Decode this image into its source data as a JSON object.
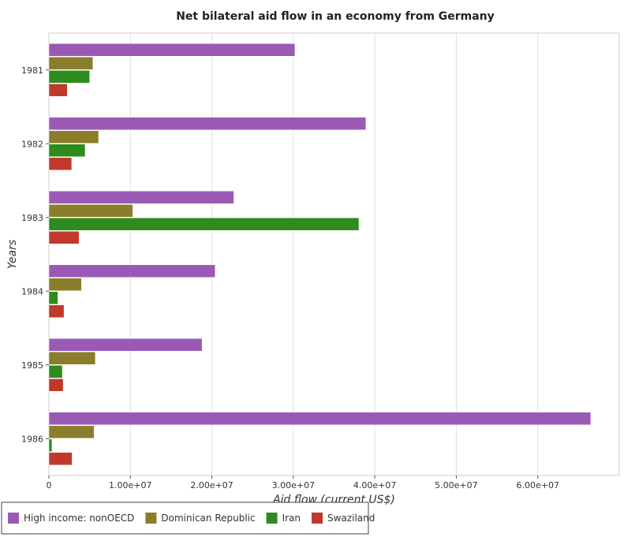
{
  "chart_data": {
    "type": "bar",
    "orientation": "horizontal",
    "title": "Net bilateral aid flow in an economy from Germany",
    "xlabel": "Aid flow (current US$)",
    "ylabel": "Years",
    "categories": [
      "1981",
      "1982",
      "1983",
      "1984",
      "1985",
      "1986"
    ],
    "series": [
      {
        "name": "High income: nonOECD",
        "color": "#9b59b6",
        "values": [
          30200000,
          38900000,
          22700000,
          20400000,
          18800000,
          66500000
        ]
      },
      {
        "name": "Dominican Republic",
        "color": "#8b7d2b",
        "values": [
          5400000,
          6100000,
          10300000,
          4000000,
          5700000,
          5550000
        ]
      },
      {
        "name": "Iran",
        "color": "#2e8b1e",
        "values": [
          5000000,
          4450000,
          38050000,
          1100000,
          1650000,
          380000
        ]
      },
      {
        "name": "Swaziland",
        "color": "#c0392b",
        "values": [
          2250000,
          2800000,
          3700000,
          1850000,
          1750000,
          2850000
        ]
      }
    ],
    "xlim": [
      0,
      70000000
    ],
    "xticks": [
      0,
      10000000,
      20000000,
      30000000,
      40000000,
      50000000,
      60000000
    ],
    "xtick_labels": [
      "0",
      "1.00e+07",
      "2.00e+07",
      "3.00e+07",
      "4.00e+07",
      "5.00e+07",
      "6.00e+07"
    ],
    "grid": true,
    "legend_position": "bottom"
  }
}
